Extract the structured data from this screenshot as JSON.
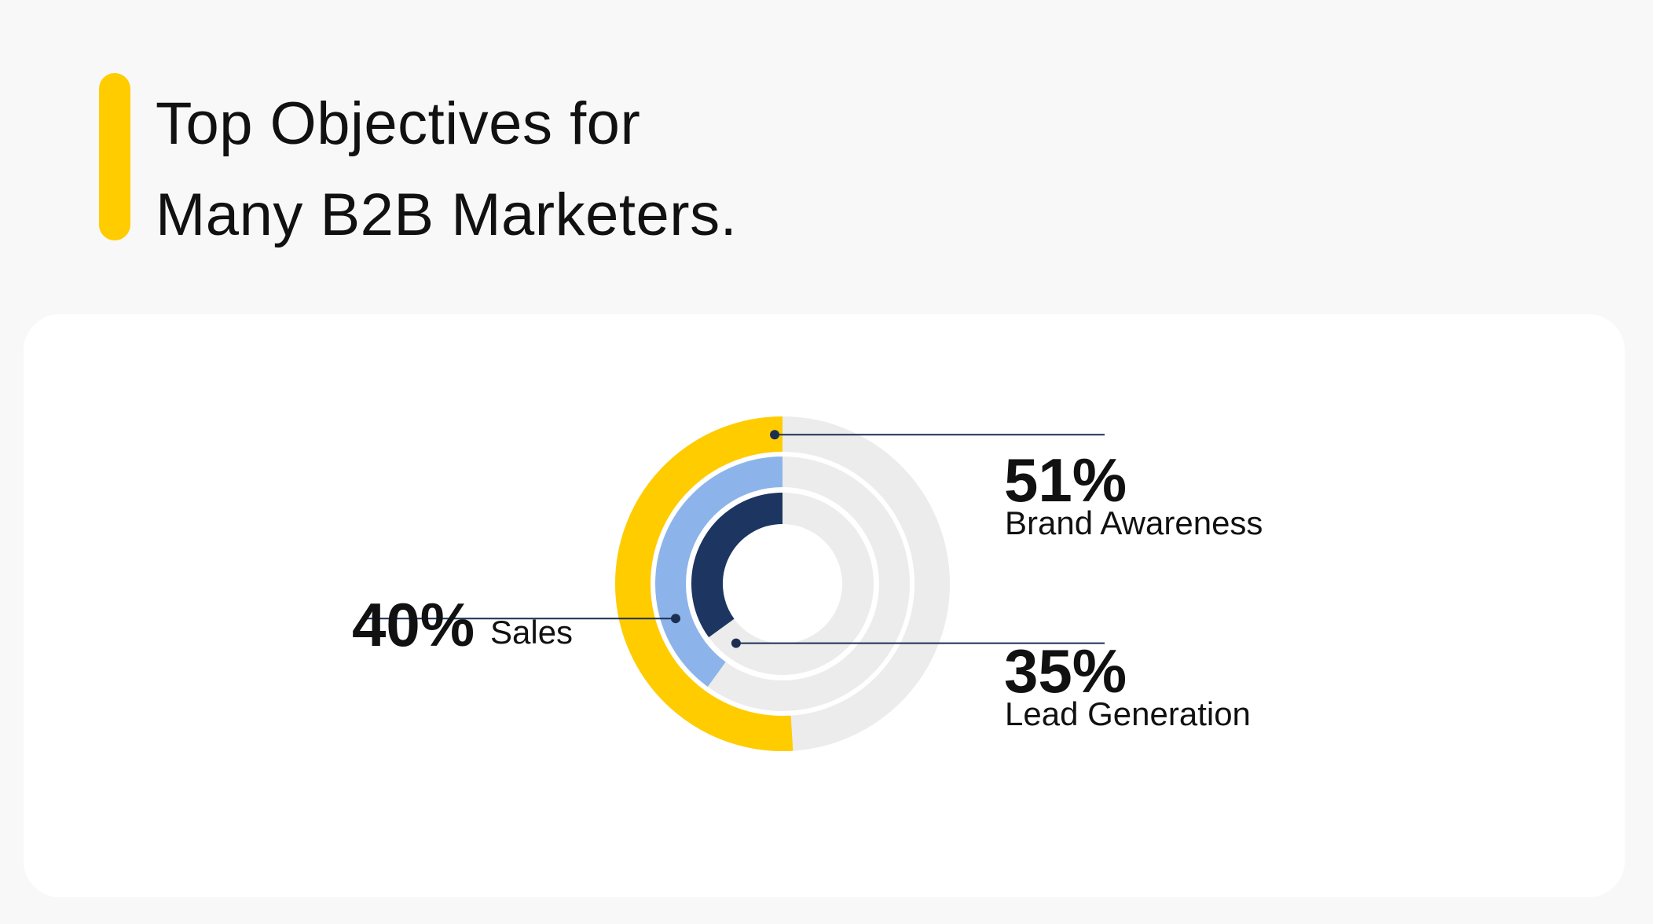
{
  "title": {
    "line1": "Top Objectives for",
    "line2": "Many B2B Marketers."
  },
  "colors": {
    "accent": "#ffcc00",
    "brand_awareness": "#ffcc00",
    "sales": "#8cb4ea",
    "lead_generation": "#1c3661",
    "track": "#ececec",
    "leader": "#1c2f52"
  },
  "chart_data": {
    "type": "radial-bar",
    "unit": "%",
    "max": 100,
    "series": [
      {
        "name": "Brand Awareness",
        "value": 51,
        "label": "51%",
        "ring": "outer",
        "color": "#ffcc00"
      },
      {
        "name": "Sales",
        "value": 40,
        "label": "40%",
        "ring": "middle",
        "color": "#8cb4ea"
      },
      {
        "name": "Lead Generation",
        "value": 35,
        "label": "35%",
        "ring": "inner",
        "color": "#1c3661"
      }
    ],
    "direction": "counterclockwise from top"
  }
}
